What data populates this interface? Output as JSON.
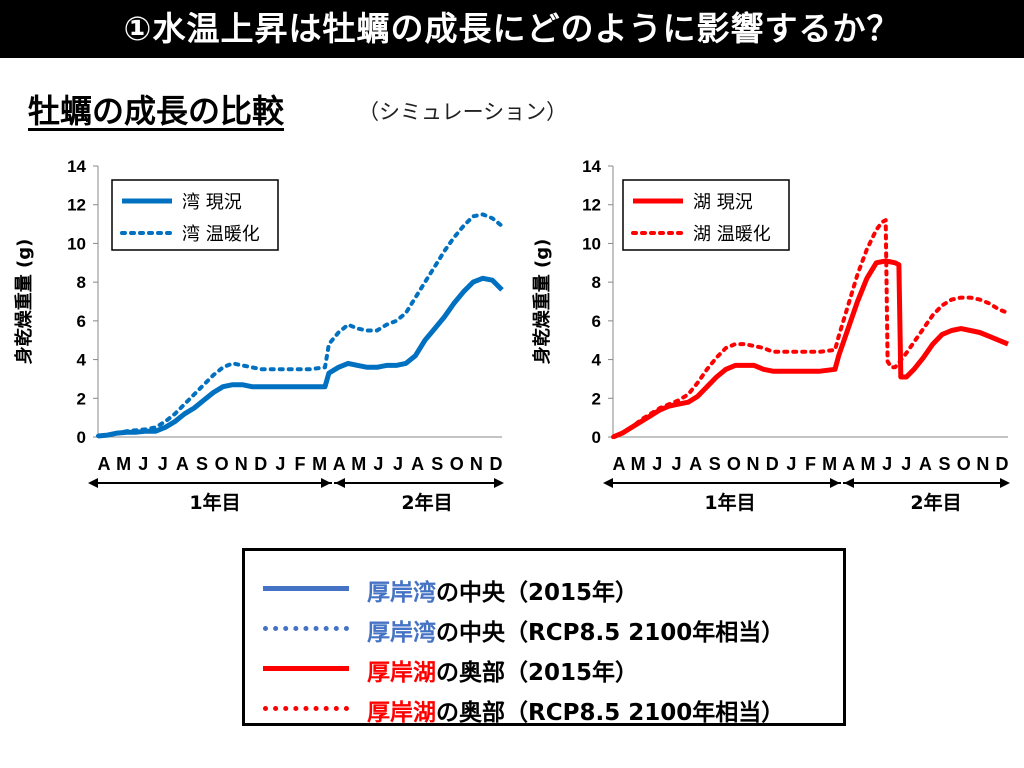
{
  "header": {
    "title": "①水温上昇は牡蠣の成長にどのように影響するか？"
  },
  "section": {
    "title": "牡蠣の成長の比較",
    "note": "（シミュレーション）"
  },
  "colors": {
    "bay": "#0070c0",
    "lake": "#ff0000",
    "legend_blue": "#4472c4"
  },
  "axes_common": {
    "ylabel": "身乾燥重量 (g)",
    "yticks": [
      "0",
      "2",
      "4",
      "6",
      "8",
      "10",
      "12",
      "14"
    ],
    "xticks": [
      "A",
      "M",
      "J",
      "J",
      "A",
      "S",
      "O",
      "N",
      "D",
      "J",
      "F",
      "M",
      "A",
      "M",
      "J",
      "J",
      "A",
      "S",
      "O",
      "N",
      "D"
    ],
    "year1": "1年目",
    "year2": "2年目"
  },
  "chart_data": [
    {
      "type": "line",
      "ylabel": "身乾燥重量 (g)",
      "ylim": [
        0,
        14
      ],
      "legend_placement": "top-left",
      "series": [
        {
          "name": "湾 現況",
          "style": "solid",
          "color": "#0070c0",
          "points": [
            [
              0,
              0.05
            ],
            [
              0.5,
              0.1
            ],
            [
              1,
              0.2
            ],
            [
              1.5,
              0.25
            ],
            [
              2,
              0.25
            ],
            [
              2.5,
              0.3
            ],
            [
              3,
              0.3
            ],
            [
              3.5,
              0.5
            ],
            [
              4,
              0.8
            ],
            [
              4.5,
              1.2
            ],
            [
              5,
              1.5
            ],
            [
              5.5,
              1.9
            ],
            [
              6,
              2.3
            ],
            [
              6.5,
              2.6
            ],
            [
              7,
              2.7
            ],
            [
              7.5,
              2.7
            ],
            [
              8,
              2.6
            ],
            [
              8.5,
              2.6
            ],
            [
              9,
              2.6
            ],
            [
              10,
              2.6
            ],
            [
              11,
              2.6
            ],
            [
              11.8,
              2.6
            ],
            [
              12,
              3.3
            ],
            [
              12.5,
              3.6
            ],
            [
              13,
              3.8
            ],
            [
              13.5,
              3.7
            ],
            [
              14,
              3.6
            ],
            [
              14.5,
              3.6
            ],
            [
              15,
              3.7
            ],
            [
              15.5,
              3.7
            ],
            [
              16,
              3.8
            ],
            [
              16.5,
              4.2
            ],
            [
              17,
              5.0
            ],
            [
              17.5,
              5.6
            ],
            [
              18,
              6.2
            ],
            [
              18.5,
              6.9
            ],
            [
              19,
              7.5
            ],
            [
              19.5,
              8.0
            ],
            [
              20,
              8.2
            ],
            [
              20.5,
              8.1
            ],
            [
              21,
              7.6
            ]
          ]
        },
        {
          "name": "湾 温暖化",
          "style": "dotted",
          "color": "#0070c0",
          "points": [
            [
              0,
              0.05
            ],
            [
              0.5,
              0.1
            ],
            [
              1,
              0.2
            ],
            [
              1.5,
              0.3
            ],
            [
              2,
              0.35
            ],
            [
              2.5,
              0.4
            ],
            [
              3,
              0.5
            ],
            [
              3.5,
              0.8
            ],
            [
              4,
              1.2
            ],
            [
              4.5,
              1.7
            ],
            [
              5,
              2.2
            ],
            [
              5.5,
              2.7
            ],
            [
              6,
              3.2
            ],
            [
              6.5,
              3.6
            ],
            [
              7,
              3.8
            ],
            [
              7.5,
              3.7
            ],
            [
              8,
              3.6
            ],
            [
              8.5,
              3.5
            ],
            [
              9,
              3.5
            ],
            [
              10,
              3.5
            ],
            [
              11,
              3.5
            ],
            [
              11.8,
              3.6
            ],
            [
              12,
              4.8
            ],
            [
              12.5,
              5.4
            ],
            [
              13,
              5.8
            ],
            [
              13.5,
              5.6
            ],
            [
              14,
              5.5
            ],
            [
              14.5,
              5.5
            ],
            [
              15,
              5.8
            ],
            [
              15.5,
              6.0
            ],
            [
              16,
              6.4
            ],
            [
              16.5,
              7.2
            ],
            [
              17,
              8.0
            ],
            [
              17.5,
              8.8
            ],
            [
              18,
              9.6
            ],
            [
              18.5,
              10.3
            ],
            [
              19,
              10.9
            ],
            [
              19.5,
              11.4
            ],
            [
              20,
              11.5
            ],
            [
              20.5,
              11.3
            ],
            [
              21,
              10.9
            ]
          ]
        }
      ]
    },
    {
      "type": "line",
      "ylabel": "身乾燥重量 (g)",
      "ylim": [
        0,
        14
      ],
      "legend_placement": "top-left",
      "series": [
        {
          "name": "湖 現況",
          "style": "solid",
          "color": "#ff0000",
          "points": [
            [
              0,
              0.0
            ],
            [
              0.5,
              0.2
            ],
            [
              1,
              0.5
            ],
            [
              1.5,
              0.8
            ],
            [
              2,
              1.1
            ],
            [
              2.5,
              1.4
            ],
            [
              3,
              1.6
            ],
            [
              3.5,
              1.7
            ],
            [
              4,
              1.8
            ],
            [
              4.5,
              2.1
            ],
            [
              5,
              2.6
            ],
            [
              5.5,
              3.1
            ],
            [
              6,
              3.5
            ],
            [
              6.5,
              3.7
            ],
            [
              7,
              3.7
            ],
            [
              7.5,
              3.7
            ],
            [
              8,
              3.5
            ],
            [
              8.5,
              3.4
            ],
            [
              9,
              3.4
            ],
            [
              10,
              3.4
            ],
            [
              11,
              3.4
            ],
            [
              11.8,
              3.5
            ],
            [
              12,
              4.2
            ],
            [
              12.5,
              5.6
            ],
            [
              13,
              7.0
            ],
            [
              13.5,
              8.2
            ],
            [
              14,
              9.0
            ],
            [
              14.5,
              9.1
            ],
            [
              15,
              9.0
            ],
            [
              15.2,
              8.9
            ],
            [
              15.3,
              3.1
            ],
            [
              15.6,
              3.1
            ],
            [
              16,
              3.5
            ],
            [
              16.5,
              4.1
            ],
            [
              17,
              4.8
            ],
            [
              17.5,
              5.3
            ],
            [
              18,
              5.5
            ],
            [
              18.5,
              5.6
            ],
            [
              19,
              5.5
            ],
            [
              19.5,
              5.4
            ],
            [
              20,
              5.2
            ],
            [
              20.5,
              5.0
            ],
            [
              21,
              4.8
            ]
          ]
        },
        {
          "name": "湖 温暖化",
          "style": "dotted",
          "color": "#ff0000",
          "points": [
            [
              0,
              0.0
            ],
            [
              0.5,
              0.2
            ],
            [
              1,
              0.5
            ],
            [
              1.5,
              0.9
            ],
            [
              2,
              1.2
            ],
            [
              2.5,
              1.5
            ],
            [
              3,
              1.7
            ],
            [
              3.5,
              1.9
            ],
            [
              4,
              2.2
            ],
            [
              4.5,
              2.8
            ],
            [
              5,
              3.5
            ],
            [
              5.5,
              4.1
            ],
            [
              6,
              4.6
            ],
            [
              6.5,
              4.8
            ],
            [
              7,
              4.8
            ],
            [
              7.5,
              4.7
            ],
            [
              8,
              4.6
            ],
            [
              8.5,
              4.4
            ],
            [
              9,
              4.4
            ],
            [
              10,
              4.4
            ],
            [
              11,
              4.4
            ],
            [
              11.8,
              4.5
            ],
            [
              12,
              5.2
            ],
            [
              12.5,
              6.8
            ],
            [
              13,
              8.4
            ],
            [
              13.5,
              9.7
            ],
            [
              14,
              10.7
            ],
            [
              14.3,
              11.1
            ],
            [
              14.5,
              11.2
            ],
            [
              14.6,
              3.9
            ],
            [
              14.8,
              3.6
            ],
            [
              15,
              3.6
            ],
            [
              15.5,
              4.2
            ],
            [
              16,
              4.9
            ],
            [
              16.5,
              5.6
            ],
            [
              17,
              6.3
            ],
            [
              17.5,
              6.8
            ],
            [
              18,
              7.1
            ],
            [
              18.5,
              7.2
            ],
            [
              19,
              7.2
            ],
            [
              19.5,
              7.1
            ],
            [
              20,
              6.9
            ],
            [
              20.5,
              6.6
            ],
            [
              21,
              6.4
            ]
          ]
        }
      ]
    }
  ],
  "legend": [
    {
      "line_style": "solid",
      "color": "#4472c4",
      "place": "厚岸湾",
      "place_color": "#4472c4",
      "rest": "の中央（2015年）"
    },
    {
      "line_style": "dotted",
      "color": "#4472c4",
      "place": "厚岸湾",
      "place_color": "#4472c4",
      "rest": "の中央（RCP8.5 2100年相当）"
    },
    {
      "line_style": "solid",
      "color": "#ff0000",
      "place": "厚岸湖",
      "place_color": "#ff0000",
      "rest": "の奥部（2015年）"
    },
    {
      "line_style": "dotted",
      "color": "#ff0000",
      "place": "厚岸湖",
      "place_color": "#ff0000",
      "rest": "の奥部（RCP8.5 2100年相当）"
    }
  ]
}
